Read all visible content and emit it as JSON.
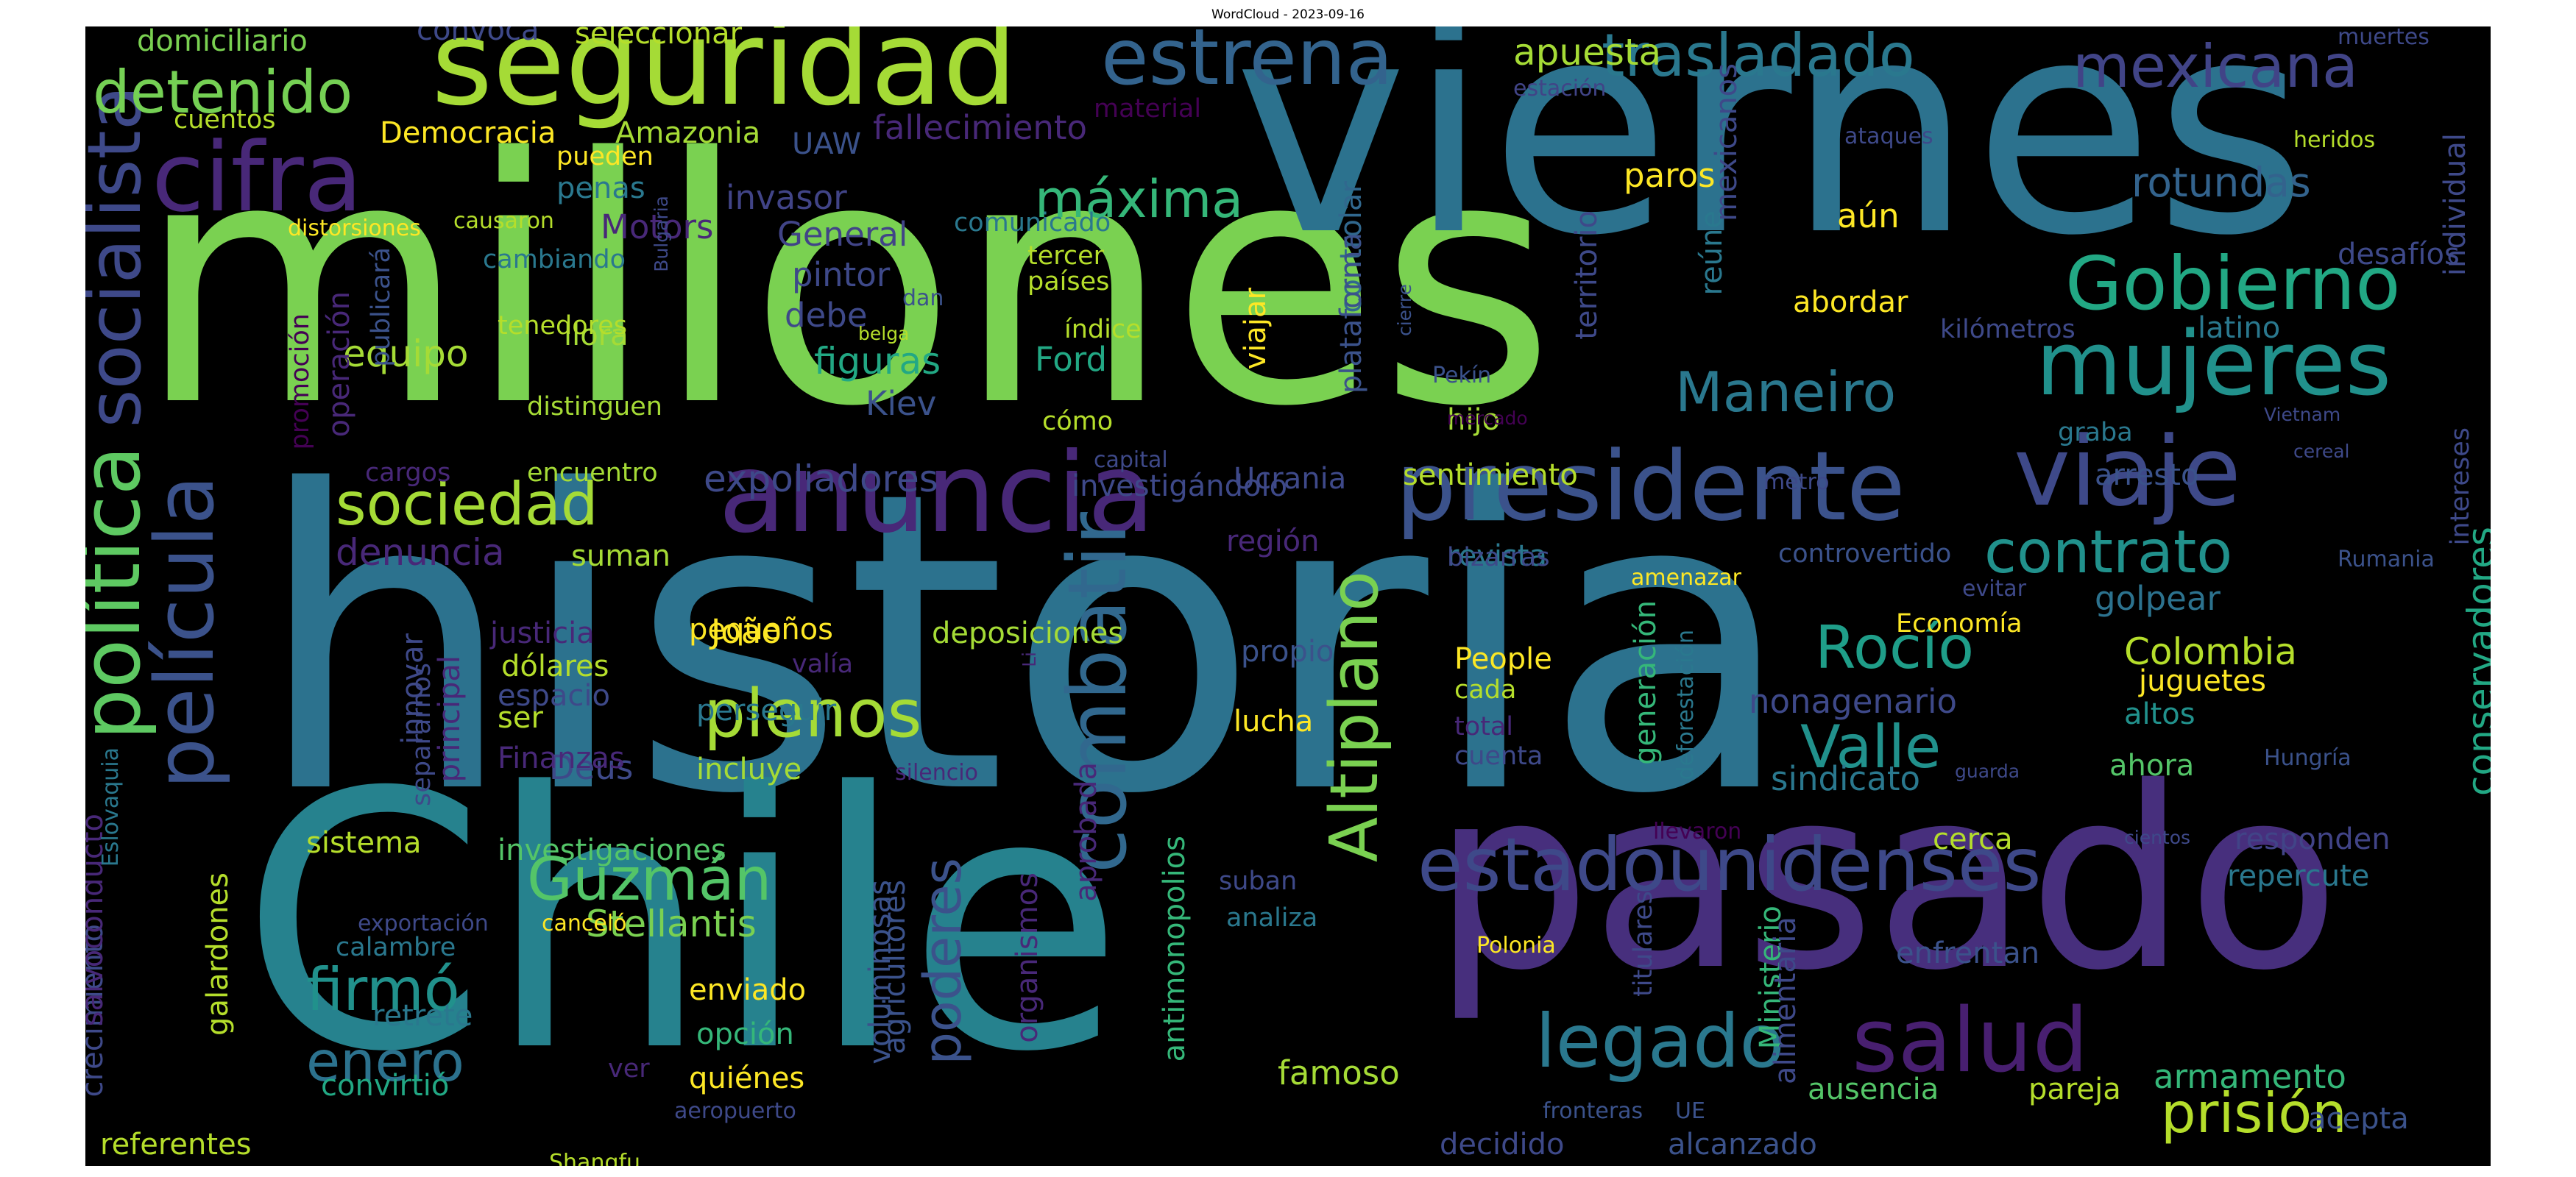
{
  "title": "WordCloud - 2023-09-16",
  "palette": [
    "#440154",
    "#482878",
    "#3e4989",
    "#31688e",
    "#26828e",
    "#1f9e89",
    "#35b779",
    "#6ece58",
    "#b5de2b",
    "#fde725"
  ],
  "words": [
    {
      "text": "historia",
      "color": "#2c728e"
    },
    {
      "text": "millones",
      "color": "#7ad151"
    },
    {
      "text": "viernes",
      "color": "#2c728e"
    },
    {
      "text": "Chile",
      "color": "#26828e"
    },
    {
      "text": "pasado",
      "color": "#472f7d"
    },
    {
      "text": "seguridad",
      "color": "#a5db36"
    },
    {
      "text": "presidente",
      "color": "#3b528b"
    },
    {
      "text": "anuncia",
      "color": "#482878"
    },
    {
      "text": "estadounidenses",
      "color": "#3e4989"
    },
    {
      "text": "viaje",
      "color": "#3e4989"
    },
    {
      "text": "mujeres",
      "color": "#21918c"
    },
    {
      "text": "Gobierno",
      "color": "#22a884"
    },
    {
      "text": "estrena",
      "color": "#33638d"
    },
    {
      "text": "cifra",
      "color": "#482878"
    },
    {
      "text": "socialista",
      "color": "#3e4989"
    },
    {
      "text": "política",
      "color": "#5ec962"
    },
    {
      "text": "película",
      "color": "#3b528b"
    },
    {
      "text": "salud",
      "color": "#481f70"
    },
    {
      "text": "legado",
      "color": "#2a788e"
    },
    {
      "text": "combatir",
      "color": "#31688e"
    },
    {
      "text": "Altiplano",
      "color": "#7ad151"
    },
    {
      "text": "plenos",
      "color": "#a5db36"
    },
    {
      "text": "trasladado",
      "color": "#2a788e"
    },
    {
      "text": "mexicana",
      "color": "#414487"
    },
    {
      "text": "detenido",
      "color": "#75d054"
    },
    {
      "text": "sociedad",
      "color": "#a5db36"
    },
    {
      "text": "máxima",
      "color": "#35b779"
    },
    {
      "text": "Maneiro",
      "color": "#2a788e"
    },
    {
      "text": "contrato",
      "color": "#21918c"
    },
    {
      "text": "Rocío",
      "color": "#1f9e89"
    },
    {
      "text": "Valle",
      "color": "#21918c"
    },
    {
      "text": "Guzmán",
      "color": "#54c568"
    },
    {
      "text": "firmó",
      "color": "#21918c"
    },
    {
      "text": "enero",
      "color": "#2c728e"
    },
    {
      "text": "poderes",
      "color": "#3b528b"
    },
    {
      "text": "prisión",
      "color": "#b5de2b"
    },
    {
      "text": "apuesta",
      "color": "#a5db36"
    },
    {
      "text": "rotundas",
      "color": "#33638d"
    },
    {
      "text": "expoliadores",
      "color": "#3e4989"
    },
    {
      "text": "denuncia",
      "color": "#482878"
    },
    {
      "text": "equipo",
      "color": "#a5db36"
    },
    {
      "text": "figuras",
      "color": "#22a884"
    },
    {
      "text": "invasor",
      "color": "#414487"
    },
    {
      "text": "Kiev",
      "color": "#3b528b"
    },
    {
      "text": "paros",
      "color": "#fde725"
    },
    {
      "text": "aún",
      "color": "#fde725"
    },
    {
      "text": "Colombia",
      "color": "#b5de2b"
    },
    {
      "text": "nonagenario",
      "color": "#3e4989"
    },
    {
      "text": "sindicato",
      "color": "#2a788e"
    },
    {
      "text": "armamento",
      "color": "#35b779"
    },
    {
      "text": "pareja",
      "color": "#b5de2b"
    },
    {
      "text": "ausencia",
      "color": "#54c568"
    },
    {
      "text": "famoso",
      "color": "#a5db36"
    },
    {
      "text": "Stellantis",
      "color": "#7ad151"
    },
    {
      "text": "conservadores",
      "color": "#22a884"
    },
    {
      "text": "fallecimiento",
      "color": "#482878"
    },
    {
      "text": "General",
      "color": "#414487"
    },
    {
      "text": "Motors",
      "color": "#482878"
    },
    {
      "text": "pintor",
      "color": "#3e4989"
    },
    {
      "text": "debe",
      "color": "#3e4989"
    },
    {
      "text": "Ford",
      "color": "#22a884"
    },
    {
      "text": "João",
      "color": "#fde725"
    },
    {
      "text": "deposiciones",
      "color": "#a5db36"
    },
    {
      "text": "Deus",
      "color": "#3e4989"
    },
    {
      "text": "incluye",
      "color": "#a5db36"
    },
    {
      "text": "suman",
      "color": "#a5db36"
    },
    {
      "text": "llora",
      "color": "#a5db36"
    },
    {
      "text": "penas",
      "color": "#2a788e"
    },
    {
      "text": "pueden",
      "color": "#fde725"
    },
    {
      "text": "UAW",
      "color": "#3b528b"
    },
    {
      "text": "Democracia",
      "color": "#fde725"
    },
    {
      "text": "Amazonia",
      "color": "#a5db36"
    },
    {
      "text": "domiciliario",
      "color": "#7ad151"
    },
    {
      "text": "convoca",
      "color": "#3e4989"
    },
    {
      "text": "seleccionar",
      "color": "#b5de2b"
    },
    {
      "text": "cuentos",
      "color": "#b5de2b"
    },
    {
      "text": "material",
      "color": "#440154"
    },
    {
      "text": "comunicado",
      "color": "#2a788e"
    },
    {
      "text": "tercer",
      "color": "#b5de2b"
    },
    {
      "text": "países",
      "color": "#b5de2b"
    },
    {
      "text": "índice",
      "color": "#b5de2b"
    },
    {
      "text": "dan",
      "color": "#3b528b"
    },
    {
      "text": "belga",
      "color": "#b5de2b"
    },
    {
      "text": "cómo",
      "color": "#b5de2b"
    },
    {
      "text": "viajar",
      "color": "#fde725"
    },
    {
      "text": "investigándolo",
      "color": "#3e4989"
    },
    {
      "text": "encuentro",
      "color": "#a5db36"
    },
    {
      "text": "cargos",
      "color": "#482878"
    },
    {
      "text": "distinguen",
      "color": "#a5db36"
    },
    {
      "text": "tenedores",
      "color": "#b5de2b"
    },
    {
      "text": "cambiando",
      "color": "#2a788e"
    },
    {
      "text": "causaron",
      "color": "#b5de2b"
    },
    {
      "text": "distorsiones",
      "color": "#fde725"
    },
    {
      "text": "Bulgaria",
      "color": "#3e4989"
    },
    {
      "text": "publicará",
      "color": "#3b528b"
    },
    {
      "text": "operación",
      "color": "#482878"
    },
    {
      "text": "promoción",
      "color": "#440154"
    },
    {
      "text": "controlar",
      "color": "#31688e"
    },
    {
      "text": "plataforma",
      "color": "#3b528b"
    },
    {
      "text": "cierre",
      "color": "#3b528b"
    },
    {
      "text": "Pekín",
      "color": "#3b528b"
    },
    {
      "text": "hijo",
      "color": "#a5db36"
    },
    {
      "text": "territorio",
      "color": "#3e4989"
    },
    {
      "text": "reúne",
      "color": "#2a788e"
    },
    {
      "text": "abordar",
      "color": "#fde725"
    },
    {
      "text": "kilómetros",
      "color": "#3e4989"
    },
    {
      "text": "latino",
      "color": "#2a788e"
    },
    {
      "text": "mercado",
      "color": "#440154"
    },
    {
      "text": "capital",
      "color": "#3e4989"
    },
    {
      "text": "sentimiento",
      "color": "#b5de2b"
    },
    {
      "text": "Ucrania",
      "color": "#3e4989"
    },
    {
      "text": "región",
      "color": "#482878"
    },
    {
      "text": "revista",
      "color": "#2a788e"
    },
    {
      "text": "bizarras",
      "color": "#3e4989"
    },
    {
      "text": "controvertido",
      "color": "#3b528b"
    },
    {
      "text": "metro",
      "color": "#3e4989"
    },
    {
      "text": "graba",
      "color": "#2a788e"
    },
    {
      "text": "arresto",
      "color": "#3b528b"
    },
    {
      "text": "golpear",
      "color": "#2c728e"
    },
    {
      "text": "Economía",
      "color": "#fde725"
    },
    {
      "text": "amenazar",
      "color": "#fde725"
    },
    {
      "text": "propio",
      "color": "#3b528b"
    },
    {
      "text": "People",
      "color": "#fde725"
    },
    {
      "text": "cada",
      "color": "#b5de2b"
    },
    {
      "text": "total",
      "color": "#482878"
    },
    {
      "text": "cuenta",
      "color": "#3e4989"
    },
    {
      "text": "lucha",
      "color": "#fde725"
    },
    {
      "text": "generación",
      "color": "#35b779"
    },
    {
      "text": "deforestación",
      "color": "#2a788e"
    },
    {
      "text": "juguetes",
      "color": "#fde725"
    },
    {
      "text": "altos",
      "color": "#21918c"
    },
    {
      "text": "ahora",
      "color": "#54c568"
    },
    {
      "text": "cerca",
      "color": "#b5de2b"
    },
    {
      "text": "responden",
      "color": "#414487"
    },
    {
      "text": "repercute",
      "color": "#2a788e"
    },
    {
      "text": "enfrentan",
      "color": "#3b528b"
    },
    {
      "text": "acepta",
      "color": "#3b528b"
    },
    {
      "text": "llevaron",
      "color": "#440154"
    },
    {
      "text": "cientos",
      "color": "#3e4989"
    },
    {
      "text": "guarda",
      "color": "#3e4989"
    },
    {
      "text": "Hungría",
      "color": "#3b528b"
    },
    {
      "text": "Rumania",
      "color": "#3b528b"
    },
    {
      "text": "intereses",
      "color": "#3e4989"
    },
    {
      "text": "evitar",
      "color": "#3e4989"
    },
    {
      "text": "cereal",
      "color": "#3e4989"
    },
    {
      "text": "Vietnam",
      "color": "#3e4989"
    },
    {
      "text": "desafíos",
      "color": "#3e4989"
    },
    {
      "text": "negativamente",
      "color": "#35b779"
    },
    {
      "text": "individual",
      "color": "#3e4989"
    },
    {
      "text": "heridos",
      "color": "#b5de2b"
    },
    {
      "text": "ataques",
      "color": "#3e4989"
    },
    {
      "text": "muertes",
      "color": "#3e4989"
    },
    {
      "text": "estación",
      "color": "#414487"
    },
    {
      "text": "mexicanos",
      "color": "#3e4989"
    },
    {
      "text": "Li",
      "color": "#482878"
    },
    {
      "text": "silencio",
      "color": "#482878"
    },
    {
      "text": "valía",
      "color": "#482878"
    },
    {
      "text": "perseguir",
      "color": "#2a788e"
    },
    {
      "text": "pequeños",
      "color": "#fde725"
    },
    {
      "text": "justicia",
      "color": "#482878"
    },
    {
      "text": "dólares",
      "color": "#b5de2b"
    },
    {
      "text": "espacio",
      "color": "#3e4989"
    },
    {
      "text": "ser",
      "color": "#b5de2b"
    },
    {
      "text": "Finanzas",
      "color": "#482878"
    },
    {
      "text": "innovar",
      "color": "#3e4989"
    },
    {
      "text": "separarnos",
      "color": "#3e4989"
    },
    {
      "text": "principal",
      "color": "#482878"
    },
    {
      "text": "sistema",
      "color": "#b5de2b"
    },
    {
      "text": "investigaciones",
      "color": "#54c568"
    },
    {
      "text": "calambre",
      "color": "#2a788e"
    },
    {
      "text": "retrete",
      "color": "#2a788e"
    },
    {
      "text": "convirtió",
      "color": "#22a884"
    },
    {
      "text": "referentes",
      "color": "#b5de2b"
    },
    {
      "text": "galardones",
      "color": "#b5de2b"
    },
    {
      "text": "crecimiento",
      "color": "#3e4989"
    },
    {
      "text": "salvoconducto",
      "color": "#482878"
    },
    {
      "text": "Eslovaquia",
      "color": "#2a788e"
    },
    {
      "text": "exportación",
      "color": "#3e4989"
    },
    {
      "text": "canceló",
      "color": "#fde725"
    },
    {
      "text": "ver",
      "color": "#482878"
    },
    {
      "text": "Shangfu",
      "color": "#b5de2b"
    },
    {
      "text": "enviado",
      "color": "#fde725"
    },
    {
      "text": "opción",
      "color": "#35b779"
    },
    {
      "text": "quiénes",
      "color": "#fde725"
    },
    {
      "text": "aeropuerto",
      "color": "#3e4989"
    },
    {
      "text": "voluminosas",
      "color": "#3b528b"
    },
    {
      "text": "agricultores",
      "color": "#3b528b"
    },
    {
      "text": "organismos",
      "color": "#482878"
    },
    {
      "text": "aprobada",
      "color": "#482878"
    },
    {
      "text": "antimonopolios",
      "color": "#35b779"
    },
    {
      "text": "suban",
      "color": "#3e4989"
    },
    {
      "text": "analiza",
      "color": "#2a788e"
    },
    {
      "text": "decidido",
      "color": "#3e4989"
    },
    {
      "text": "alcanzado",
      "color": "#3b528b"
    },
    {
      "text": "fronteras",
      "color": "#3b528b"
    },
    {
      "text": "UE",
      "color": "#3b528b"
    },
    {
      "text": "titulares",
      "color": "#3e4989"
    },
    {
      "text": "Ministerio",
      "color": "#35b779"
    },
    {
      "text": "alimentaria",
      "color": "#3e4989"
    },
    {
      "text": "Polonia",
      "color": "#fde725"
    }
  ]
}
